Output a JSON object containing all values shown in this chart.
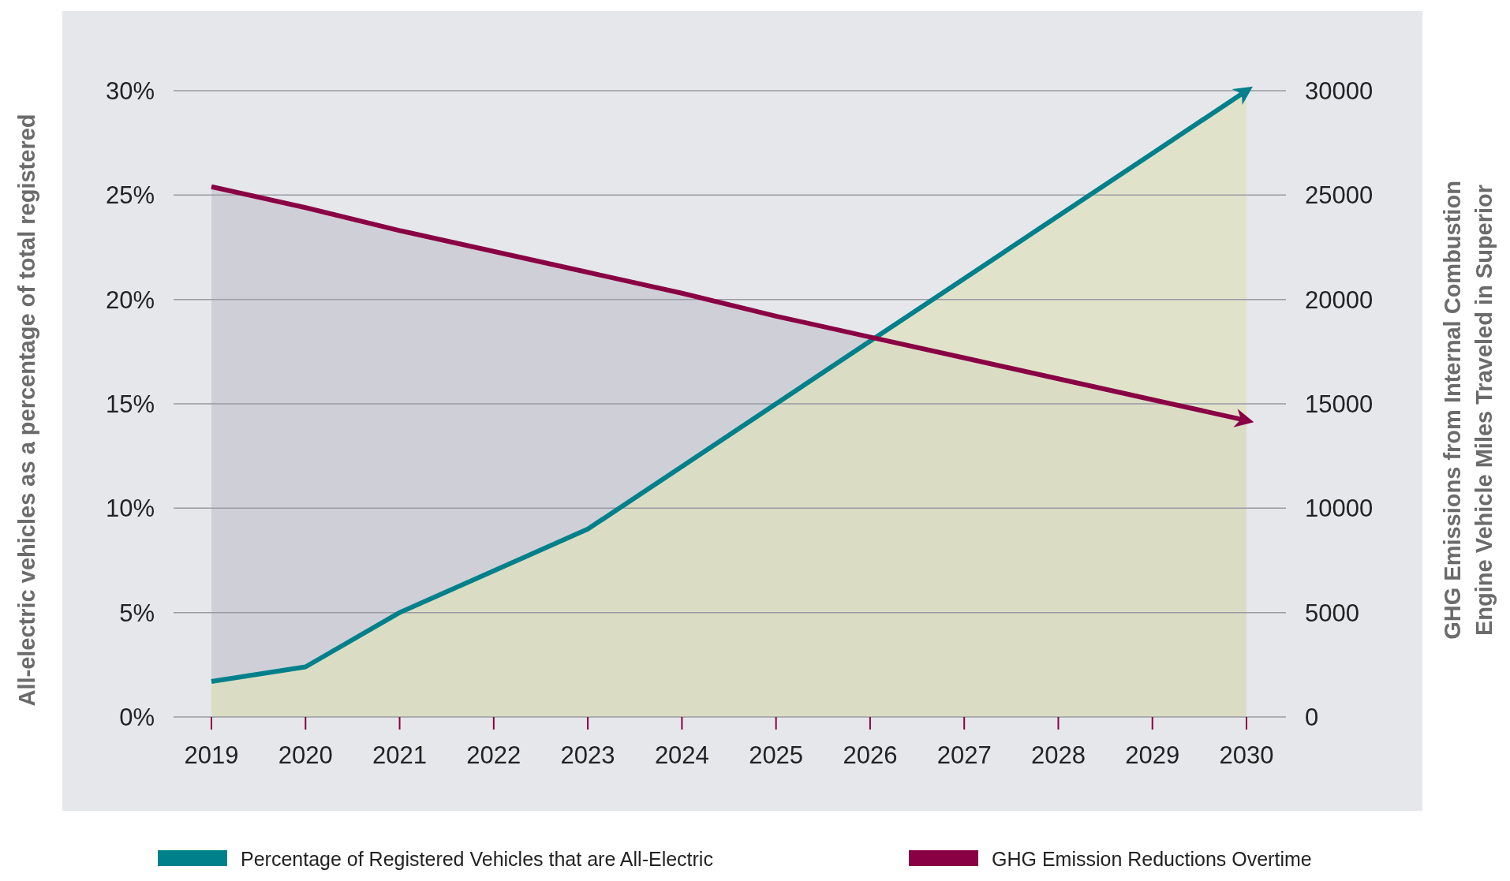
{
  "chart_data": {
    "type": "area",
    "categories": [
      "2019",
      "2020",
      "2021",
      "2022",
      "2023",
      "2024",
      "2025",
      "2026",
      "2027",
      "2028",
      "2029",
      "2030"
    ],
    "series": [
      {
        "name": "Percentage of Registered Vehicles that are All-Electric",
        "color": "#00808a",
        "values": [
          1.7,
          2.4,
          5,
          7,
          9,
          12,
          15,
          18,
          21,
          24,
          27,
          30
        ]
      },
      {
        "name": "GHG Emission Reductions Overtime",
        "color": "#8a0045",
        "axis": "y2",
        "values": [
          25400,
          24400,
          23300,
          22300,
          21300,
          20300,
          19200,
          18200,
          17200,
          16200,
          15200,
          14200
        ]
      }
    ],
    "ylabel": "All-electric vehicles as a percentage of total registered",
    "y2label": "GHG Emissions from Internal Combustion Engine Vehicle Miles Traveled in Superior",
    "ylim": [
      0,
      30
    ],
    "yticks": [
      {
        "value": 0,
        "label": "0%"
      },
      {
        "value": 5,
        "label": "5%"
      },
      {
        "value": 10,
        "label": "10%"
      },
      {
        "value": 15,
        "label": "15%"
      },
      {
        "value": 20,
        "label": "20%"
      },
      {
        "value": 25,
        "label": "25%"
      },
      {
        "value": 30,
        "label": "30%"
      }
    ],
    "y2lim": [
      0,
      30000
    ],
    "y2ticks": [
      0,
      5000,
      10000,
      15000,
      20000,
      25000,
      30000
    ],
    "grid": "y",
    "legend": "bottom"
  }
}
